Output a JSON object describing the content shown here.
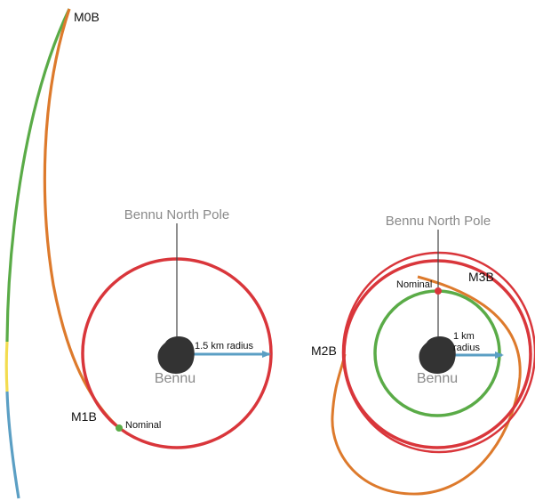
{
  "left_panel": {
    "maneuver_top": "M0B",
    "maneuver_bottom": "M1B",
    "pole_label": "Bennu North Pole",
    "body_label": "Bennu",
    "radius_label": "1.5 km radius",
    "point_label": "Nominal"
  },
  "right_panel": {
    "pole_label": "Bennu North Pole",
    "body_label": "Bennu",
    "radius_label_line1": "1 km",
    "radius_label_line2": "radius",
    "point_label": "Nominal",
    "maneuver_right": "M3B",
    "maneuver_left": "M2B"
  },
  "colors": {
    "red": "#d9363b",
    "green": "#5aab47",
    "orange": "#dd7a2c",
    "blue": "#5b9fc4",
    "yellow": "#f3dc4f",
    "asteroid": "#333333",
    "pole_line": "#444444"
  }
}
